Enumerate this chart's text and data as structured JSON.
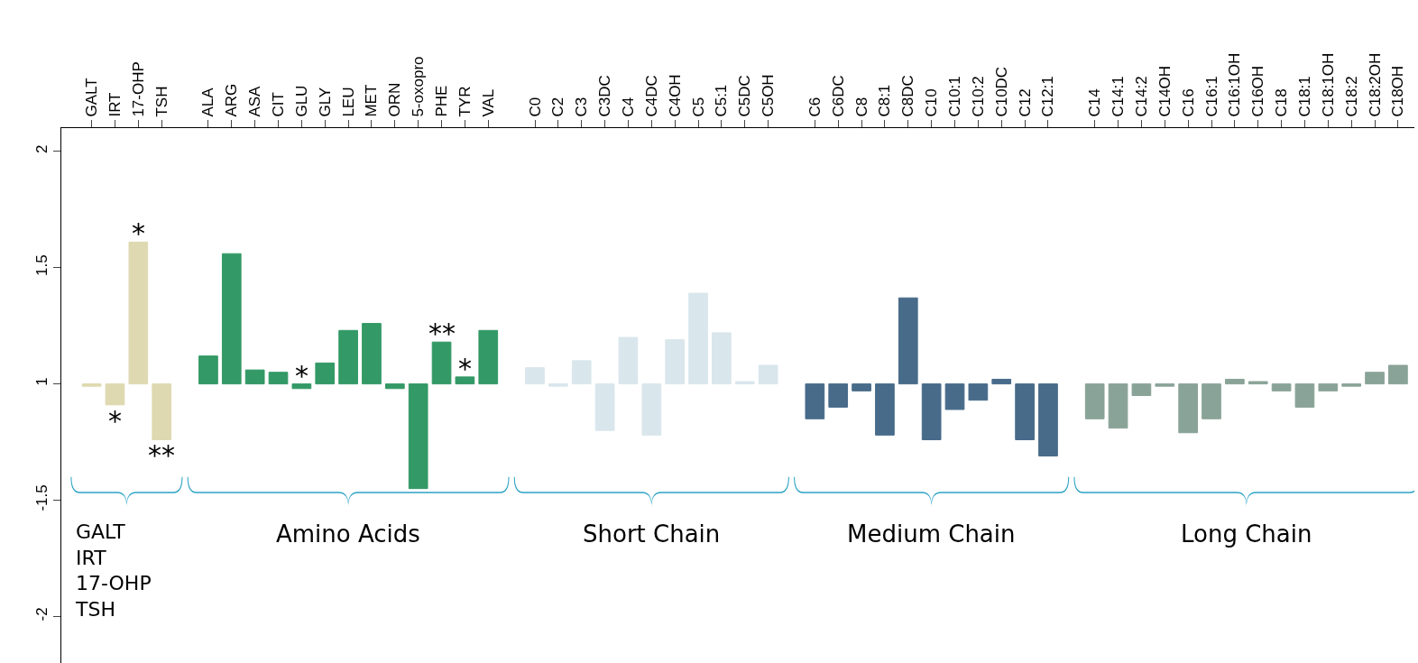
{
  "chart_data": {
    "type": "bar",
    "categories": [
      "GALT",
      "IRT",
      "17-OHP",
      "TSH",
      null,
      "ALA",
      "ARG",
      "ASA",
      "CIT",
      "GLU",
      "GLY",
      "LEU",
      "MET",
      "ORN",
      "5-oxopro",
      "PHE",
      "TYR",
      "VAL",
      null,
      "C0",
      "C2",
      "C3",
      "C3DC",
      "C4",
      "C4DC",
      "C4OH",
      "C5",
      "C5:1",
      "C5DC",
      "C5OH",
      null,
      "C6",
      "C6DC",
      "C8",
      "C8:1",
      "C8DC",
      "C10",
      "C10:1",
      "C10:2",
      "C10DC",
      "C12",
      "C12:1",
      null,
      "C14",
      "C14:1",
      "C14:2",
      "C14OH",
      "C16",
      "C16:1",
      "C16:1OH",
      "C16OH",
      "C18",
      "C18:1",
      "C18:1OH",
      "C18:2",
      "C18:2OH",
      "C18OH"
    ],
    "values": [
      -0.01,
      -0.09,
      0.61,
      -0.24,
      null,
      0.12,
      0.56,
      0.06,
      0.05,
      -0.02,
      0.09,
      0.23,
      0.26,
      -0.02,
      -0.45,
      0.18,
      0.03,
      0.23,
      null,
      0.07,
      -0.01,
      0.1,
      -0.2,
      0.2,
      -0.22,
      0.19,
      0.39,
      0.22,
      0.01,
      0.08,
      null,
      -0.15,
      -0.1,
      -0.03,
      -0.22,
      0.37,
      -0.24,
      -0.11,
      -0.07,
      0.02,
      -0.24,
      -0.31,
      null,
      -0.15,
      -0.19,
      -0.05,
      -0.01,
      -0.21,
      -0.15,
      0.02,
      0.01,
      -0.03,
      -0.1,
      -0.03,
      -0.01,
      0.05,
      0.08
    ],
    "base": [
      1,
      1,
      1,
      1,
      null,
      1,
      1,
      1,
      1,
      1,
      1,
      1,
      1,
      1,
      1,
      1,
      1,
      1,
      null,
      1,
      1,
      1,
      1,
      1,
      1,
      1,
      1,
      1,
      1,
      1,
      null,
      1,
      1,
      1,
      1,
      1,
      1,
      1,
      1,
      1,
      1,
      1,
      null,
      1,
      1,
      1,
      1,
      1,
      1,
      1,
      1,
      1,
      1,
      1,
      1,
      1,
      1
    ],
    "colors": [
      "#ded9b0",
      "#ded9b0",
      "#ded9b0",
      "#ded9b0",
      null,
      "#339966",
      "#339966",
      "#339966",
      "#339966",
      "#339966",
      "#339966",
      "#339966",
      "#339966",
      "#339966",
      "#339966",
      "#339966",
      "#339966",
      "#339966",
      null,
      "#d9e6ec",
      "#d9e6ec",
      "#d9e6ec",
      "#d9e6ec",
      "#d9e6ec",
      "#d9e6ec",
      "#d9e6ec",
      "#d9e6ec",
      "#d9e6ec",
      "#d9e6ec",
      "#d9e6ec",
      null,
      "#486b8a",
      "#486b8a",
      "#486b8a",
      "#486b8a",
      "#486b8a",
      "#486b8a",
      "#486b8a",
      "#486b8a",
      "#486b8a",
      "#486b8a",
      "#486b8a",
      null,
      "#8aa398",
      "#8aa398",
      "#8aa398",
      "#8aa398",
      "#8aa398",
      "#8aa398",
      "#8aa398",
      "#8aa398",
      "#8aa398",
      "#8aa398",
      "#8aa398",
      "#8aa398",
      "#8aa398",
      "#8aa398"
    ],
    "ylim": [
      -0.2,
      2.1
    ],
    "yticks": [
      1,
      1.5,
      2
    ],
    "y2lim": [
      -2.2,
      0.1
    ],
    "y2ticks": [
      -2,
      -1.5
    ],
    "annotations": [
      {
        "text": "*",
        "x": "17-OHP",
        "y": 1.61
      },
      {
        "text": "*",
        "x": "IRT",
        "y": 0.91
      },
      {
        "text": "**",
        "x": "TSH",
        "y": 0.76
      },
      {
        "text": "*",
        "x": "GLU",
        "y": 1
      },
      {
        "text": "**",
        "x": "PHE",
        "y": 1.18
      },
      {
        "text": "*",
        "x": "TYR",
        "y": 1.03
      },
      "GALT\nIRT\n17-OHP\nTSH",
      "Amino Acids",
      "Short Chain",
      "Medium Chain",
      "Long Chain"
    ]
  }
}
